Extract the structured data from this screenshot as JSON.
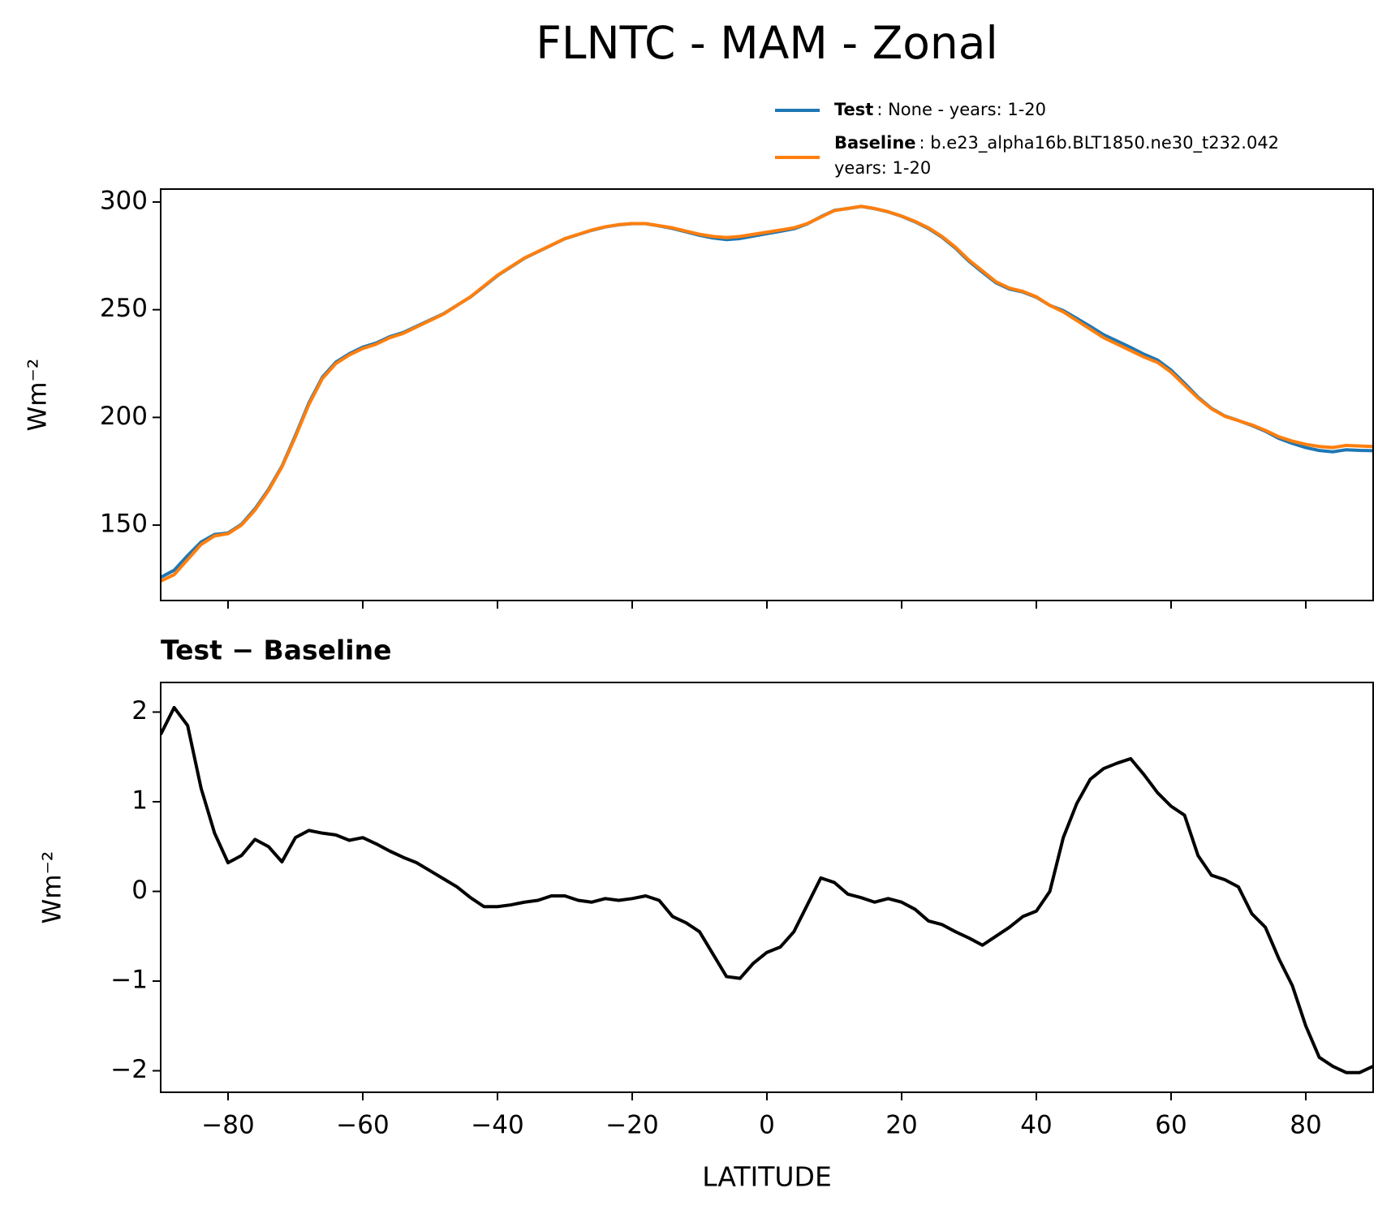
{
  "chart_data": [
    {
      "type": "line",
      "title": "FLNTC - MAM - Zonal",
      "ylabel": "Wm⁻²",
      "x": [
        -90,
        -88,
        -86,
        -84,
        -82,
        -80,
        -78,
        -76,
        -74,
        -72,
        -70,
        -68,
        -66,
        -64,
        -62,
        -60,
        -58,
        -56,
        -54,
        -52,
        -50,
        -48,
        -46,
        -44,
        -42,
        -40,
        -38,
        -36,
        -34,
        -32,
        -30,
        -28,
        -26,
        -24,
        -22,
        -20,
        -18,
        -16,
        -14,
        -12,
        -10,
        -8,
        -6,
        -4,
        -2,
        0,
        2,
        4,
        6,
        8,
        10,
        12,
        14,
        16,
        18,
        20,
        22,
        24,
        26,
        28,
        30,
        32,
        34,
        36,
        38,
        40,
        42,
        44,
        46,
        48,
        50,
        52,
        54,
        56,
        58,
        60,
        62,
        64,
        66,
        68,
        70,
        72,
        74,
        76,
        78,
        80,
        82,
        84,
        86,
        88,
        90
      ],
      "series": [
        {
          "name": "Test",
          "description": [
            ": None - years: 1-20"
          ],
          "color": "#1f77b4",
          "values": [
            125.75,
            129.05,
            135.85,
            142.15,
            145.65,
            146.32,
            150.4,
            157.58,
            166.5,
            177.33,
            191.6,
            206.68,
            218.65,
            225.63,
            229.57,
            232.6,
            234.53,
            237.45,
            239.38,
            242.32,
            245.23,
            248.14,
            252.05,
            255.93,
            260.83,
            265.83,
            269.85,
            273.88,
            276.9,
            279.95,
            282.95,
            284.9,
            286.88,
            288.42,
            289.4,
            289.92,
            289.95,
            288.9,
            287.72,
            286.15,
            284.55,
            283.3,
            282.55,
            283.03,
            284.2,
            285.32,
            286.38,
            287.55,
            289.85,
            293.15,
            296.1,
            296.97,
            297.93,
            296.88,
            295.42,
            293.38,
            290.8,
            287.67,
            283.63,
            278.55,
            272.48,
            267.4,
            262.5,
            259.6,
            258.22,
            255.78,
            252,
            249.6,
            245.98,
            242.25,
            238.37,
            235.43,
            232.48,
            229.3,
            226.6,
            221.95,
            215.85,
            209.4,
            204.18,
            200.63,
            198.55,
            196.25,
            193.6,
            190.25,
            187.95,
            186,
            184.65,
            184.05,
            184.98,
            184.68,
            184.55
          ]
        },
        {
          "name": "Baseline",
          "description": [
            ": b.e23_alpha16b.BLT1850.ne30_t232.042",
            "years: 1-20"
          ],
          "color": "#ff7f0e",
          "values": [
            124,
            127,
            134,
            141,
            145,
            146,
            150,
            157,
            166,
            177,
            191,
            206,
            218,
            225,
            229,
            232,
            234,
            237,
            239,
            242,
            245,
            248,
            252,
            256,
            261,
            266,
            270,
            274,
            277,
            280,
            283,
            285,
            287,
            288.5,
            289.5,
            290,
            290,
            289,
            288,
            286.5,
            285,
            284,
            283.5,
            284,
            285,
            286,
            287,
            288,
            290,
            293,
            296,
            297,
            298,
            297,
            295.5,
            293.5,
            291,
            288,
            284,
            279,
            273,
            268,
            263,
            260,
            258.5,
            256,
            252,
            249,
            245,
            241,
            237,
            234,
            231,
            228,
            225.5,
            221,
            215,
            209,
            204,
            200.5,
            198.5,
            196.5,
            194,
            191,
            189,
            187.5,
            186.5,
            186,
            187,
            186.7,
            186.5
          ]
        }
      ],
      "xlim": [
        -90,
        90
      ],
      "xticks": [
        -80,
        -60,
        -40,
        -20,
        0,
        20,
        40,
        60,
        80
      ],
      "ylim": [
        115,
        306
      ],
      "yticks": [
        150,
        200,
        250,
        300
      ]
    },
    {
      "type": "line",
      "title": "Test − Baseline",
      "ylabel": "Wm⁻²",
      "xlabel": "LATITUDE",
      "x": [
        -90,
        -88,
        -86,
        -84,
        -82,
        -80,
        -78,
        -76,
        -74,
        -72,
        -70,
        -68,
        -66,
        -64,
        -62,
        -60,
        -58,
        -56,
        -54,
        -52,
        -50,
        -48,
        -46,
        -44,
        -42,
        -40,
        -38,
        -36,
        -34,
        -32,
        -30,
        -28,
        -26,
        -24,
        -22,
        -20,
        -18,
        -16,
        -14,
        -12,
        -10,
        -8,
        -6,
        -4,
        -2,
        0,
        2,
        4,
        6,
        8,
        10,
        12,
        14,
        16,
        18,
        20,
        22,
        24,
        26,
        28,
        30,
        32,
        34,
        36,
        38,
        40,
        42,
        44,
        46,
        48,
        50,
        52,
        54,
        56,
        58,
        60,
        62,
        64,
        66,
        68,
        70,
        72,
        74,
        76,
        78,
        80,
        82,
        84,
        86,
        88,
        90
      ],
      "series": [
        {
          "color": "#000000",
          "values": [
            1.75,
            2.05,
            1.85,
            1.15,
            0.65,
            0.32,
            0.4,
            0.58,
            0.5,
            0.33,
            0.6,
            0.68,
            0.65,
            0.63,
            0.57,
            0.6,
            0.53,
            0.45,
            0.38,
            0.32,
            0.23,
            0.14,
            0.05,
            -0.07,
            -0.17,
            -0.17,
            -0.15,
            -0.12,
            -0.1,
            -0.05,
            -0.05,
            -0.1,
            -0.12,
            -0.08,
            -0.1,
            -0.08,
            -0.05,
            -0.1,
            -0.28,
            -0.35,
            -0.45,
            -0.7,
            -0.95,
            -0.97,
            -0.8,
            -0.68,
            -0.62,
            -0.45,
            -0.15,
            0.15,
            0.1,
            -0.03,
            -0.07,
            -0.12,
            -0.08,
            -0.12,
            -0.2,
            -0.33,
            -0.37,
            -0.45,
            -0.52,
            -0.6,
            -0.5,
            -0.4,
            -0.28,
            -0.22,
            0.0,
            0.6,
            0.98,
            1.25,
            1.37,
            1.43,
            1.48,
            1.3,
            1.1,
            0.95,
            0.85,
            0.4,
            0.18,
            0.13,
            0.05,
            -0.25,
            -0.4,
            -0.75,
            -1.05,
            -1.5,
            -1.85,
            -1.95,
            -2.02,
            -2.02,
            -1.95
          ]
        }
      ],
      "xlim": [
        -90,
        90
      ],
      "xticks": [
        {
          "value": -80,
          "label": "−80"
        },
        {
          "value": -60,
          "label": "−60"
        },
        {
          "value": -40,
          "label": "−40"
        },
        {
          "value": -20,
          "label": "−20"
        },
        0,
        20,
        40,
        60,
        80
      ],
      "ylim": [
        -2.24,
        2.33
      ],
      "yticks": [
        {
          "value": -2,
          "label": "−2"
        },
        {
          "value": -1,
          "label": "−1"
        },
        0,
        1,
        2
      ]
    }
  ]
}
